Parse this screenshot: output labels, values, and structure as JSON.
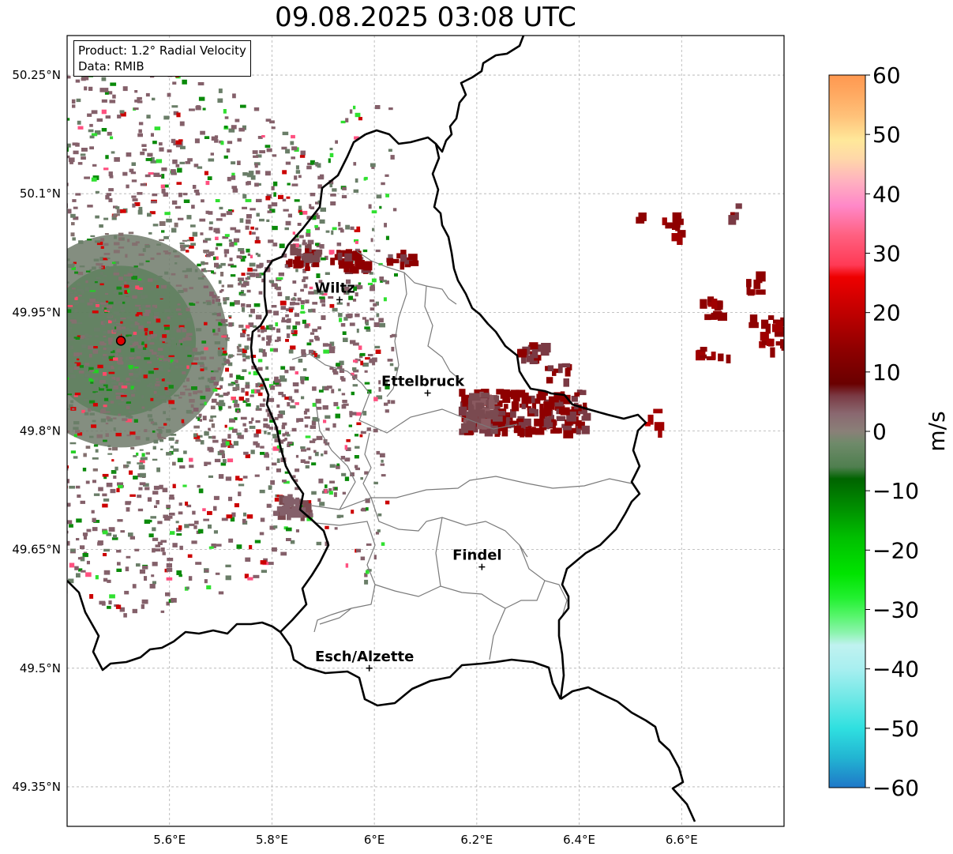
{
  "title": "09.08.2025 03:08 UTC",
  "info": {
    "product": "Product: 1.2° Radial Velocity",
    "data": "Data: RMIB"
  },
  "map": {
    "lon_range": [
      5.4,
      6.8
    ],
    "lat_range": [
      49.3,
      50.3
    ],
    "lat_ticks": [
      {
        "value": 50.25,
        "label": "50.25°N"
      },
      {
        "value": 50.1,
        "label": "50.1°N"
      },
      {
        "value": 49.95,
        "label": "49.95°N"
      },
      {
        "value": 49.8,
        "label": "49.8°N"
      },
      {
        "value": 49.65,
        "label": "49.65°N"
      },
      {
        "value": 49.5,
        "label": "49.5°N"
      },
      {
        "value": 49.35,
        "label": "49.35°N"
      }
    ],
    "lon_ticks": [
      {
        "value": 5.6,
        "label": "5.6°E"
      },
      {
        "value": 5.8,
        "label": "5.8°E"
      },
      {
        "value": 6.0,
        "label": "6°E"
      },
      {
        "value": 6.2,
        "label": "6.2°E"
      },
      {
        "value": 6.4,
        "label": "6.4°E"
      },
      {
        "value": 6.6,
        "label": "6.6°E"
      }
    ],
    "grid": true,
    "radar_site": {
      "lon": 5.505,
      "lat": 49.914
    },
    "cities": [
      {
        "name": "Wiltz",
        "lon": 5.932,
        "lat": 49.966
      },
      {
        "name": "Ettelbruck",
        "lon": 6.104,
        "lat": 49.848
      },
      {
        "name": "Findel",
        "lon": 6.21,
        "lat": 49.628
      },
      {
        "name": "Esch/Alzette",
        "lon": 5.99,
        "lat": 49.5
      }
    ]
  },
  "colorbar": {
    "unit": "m/s",
    "min": -60,
    "max": 60,
    "ticks": [
      {
        "value": 60,
        "label": "60"
      },
      {
        "value": 50,
        "label": "50"
      },
      {
        "value": 40,
        "label": "40"
      },
      {
        "value": 30,
        "label": "30"
      },
      {
        "value": 20,
        "label": "20"
      },
      {
        "value": 10,
        "label": "10"
      },
      {
        "value": 0,
        "label": "0"
      },
      {
        "value": -10,
        "label": "−10"
      },
      {
        "value": -20,
        "label": "−20"
      },
      {
        "value": -30,
        "label": "−30"
      },
      {
        "value": -40,
        "label": "−40"
      },
      {
        "value": -50,
        "label": "−50"
      },
      {
        "value": -60,
        "label": "−60"
      }
    ],
    "stops": [
      {
        "value": -60,
        "color": "#1f78c8"
      },
      {
        "value": -55,
        "color": "#22b4d2"
      },
      {
        "value": -50,
        "color": "#2fe0e0"
      },
      {
        "value": -45,
        "color": "#6ee8e6"
      },
      {
        "value": -40,
        "color": "#a8eff0"
      },
      {
        "value": -36,
        "color": "#c0f2f0"
      },
      {
        "value": -34,
        "color": "#8ef4b0"
      },
      {
        "value": -31,
        "color": "#55f56a"
      },
      {
        "value": -28,
        "color": "#22f030"
      },
      {
        "value": -24,
        "color": "#00e400"
      },
      {
        "value": -18,
        "color": "#00c000"
      },
      {
        "value": -13,
        "color": "#009000"
      },
      {
        "value": -8,
        "color": "#006400"
      },
      {
        "value": -6,
        "color": "#4f7f4f"
      },
      {
        "value": -2,
        "color": "#6f8a6a"
      },
      {
        "value": 0,
        "color": "#8a8078"
      },
      {
        "value": 3,
        "color": "#8a6870"
      },
      {
        "value": 6,
        "color": "#7a3a44"
      },
      {
        "value": 8,
        "color": "#6a0000"
      },
      {
        "value": 14,
        "color": "#900000"
      },
      {
        "value": 20,
        "color": "#c00000"
      },
      {
        "value": 26,
        "color": "#ee0000"
      },
      {
        "value": 28,
        "color": "#ff3a55"
      },
      {
        "value": 33,
        "color": "#ff6080"
      },
      {
        "value": 38,
        "color": "#ff88c8"
      },
      {
        "value": 42,
        "color": "#ffb0c0"
      },
      {
        "value": 46,
        "color": "#ffd8a8"
      },
      {
        "value": 49,
        "color": "#ffe89a"
      },
      {
        "value": 53,
        "color": "#ffc27a"
      },
      {
        "value": 57,
        "color": "#ffa860"
      },
      {
        "value": 60,
        "color": "#ff9850"
      }
    ]
  }
}
